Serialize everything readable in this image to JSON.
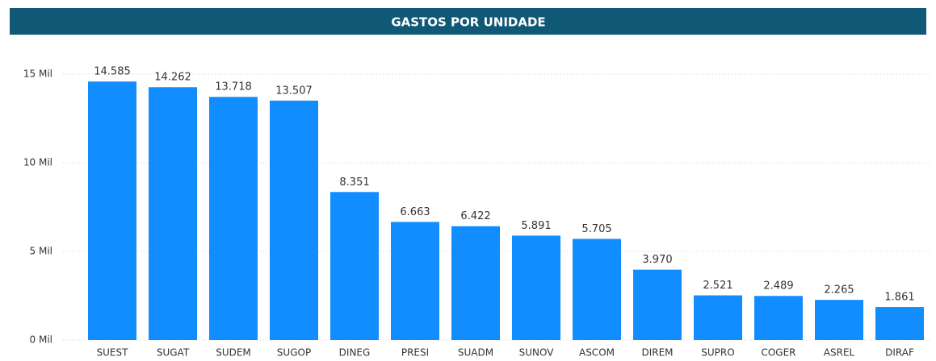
{
  "chart_data": {
    "type": "bar",
    "title": "GASTOS POR UNIDADE",
    "categories": [
      "SUEST",
      "SUGAT",
      "SUDEM",
      "SUGOP",
      "DINEG",
      "PRESI",
      "SUADM",
      "SUNOV",
      "ASCOM",
      "DIREM",
      "SUPRO",
      "COGER",
      "ASREL",
      "DIRAF"
    ],
    "values": [
      14585,
      14262,
      13718,
      13507,
      8351,
      6663,
      6422,
      5891,
      5705,
      3970,
      2521,
      2489,
      2265,
      1861
    ],
    "value_labels": [
      "14.585",
      "14.262",
      "13.718",
      "13.507",
      "8.351",
      "6.663",
      "6.422",
      "5.891",
      "5.705",
      "3.970",
      "2.521",
      "2.489",
      "2.265",
      "1.861"
    ],
    "color": "#118dff",
    "ylim": [
      0,
      15000
    ],
    "yticks": [
      {
        "value": 0,
        "label": "0 Mil"
      },
      {
        "value": 5000,
        "label": "5 Mil"
      },
      {
        "value": 10000,
        "label": "10 Mil"
      },
      {
        "value": 15000,
        "label": "15 Mil"
      }
    ],
    "grid": true
  }
}
